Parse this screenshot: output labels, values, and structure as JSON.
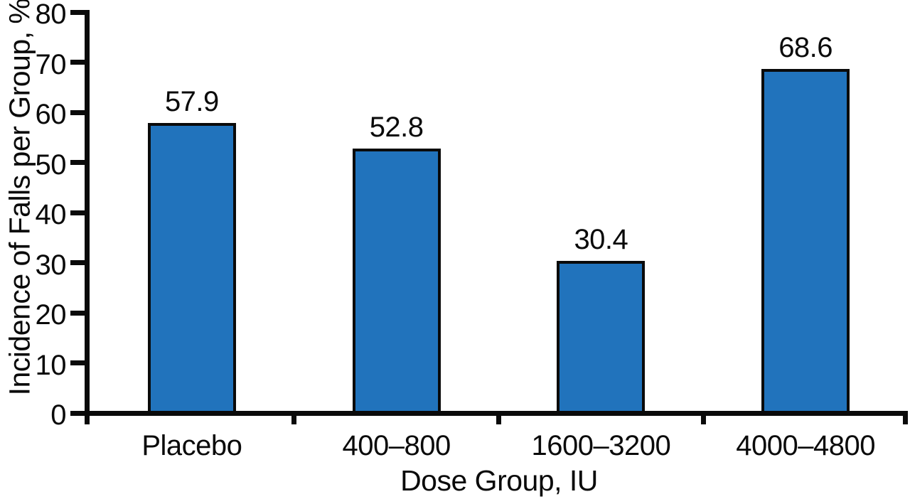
{
  "figure": {
    "background": "#ffffff",
    "text_color": "#0a0a0a"
  },
  "chart_data": {
    "type": "bar",
    "title": "",
    "xlabel": "Dose Group, IU",
    "ylabel": "Incidence of Falls per Group, %",
    "categories": [
      "Placebo",
      "400–800",
      "1600–3200",
      "4000–4800"
    ],
    "values": [
      57.9,
      52.8,
      30.4,
      68.6
    ],
    "value_labels": [
      "57.9",
      "52.8",
      "30.4",
      "68.6"
    ],
    "ylim": [
      0,
      80
    ],
    "yticks": [
      0,
      10,
      20,
      30,
      40,
      50,
      60,
      70,
      80
    ],
    "grid": false,
    "legend": "none",
    "bar_color": "#2173BC",
    "bar_border_color": "#0a0a0a",
    "axis_color": "#0a0a0a"
  }
}
